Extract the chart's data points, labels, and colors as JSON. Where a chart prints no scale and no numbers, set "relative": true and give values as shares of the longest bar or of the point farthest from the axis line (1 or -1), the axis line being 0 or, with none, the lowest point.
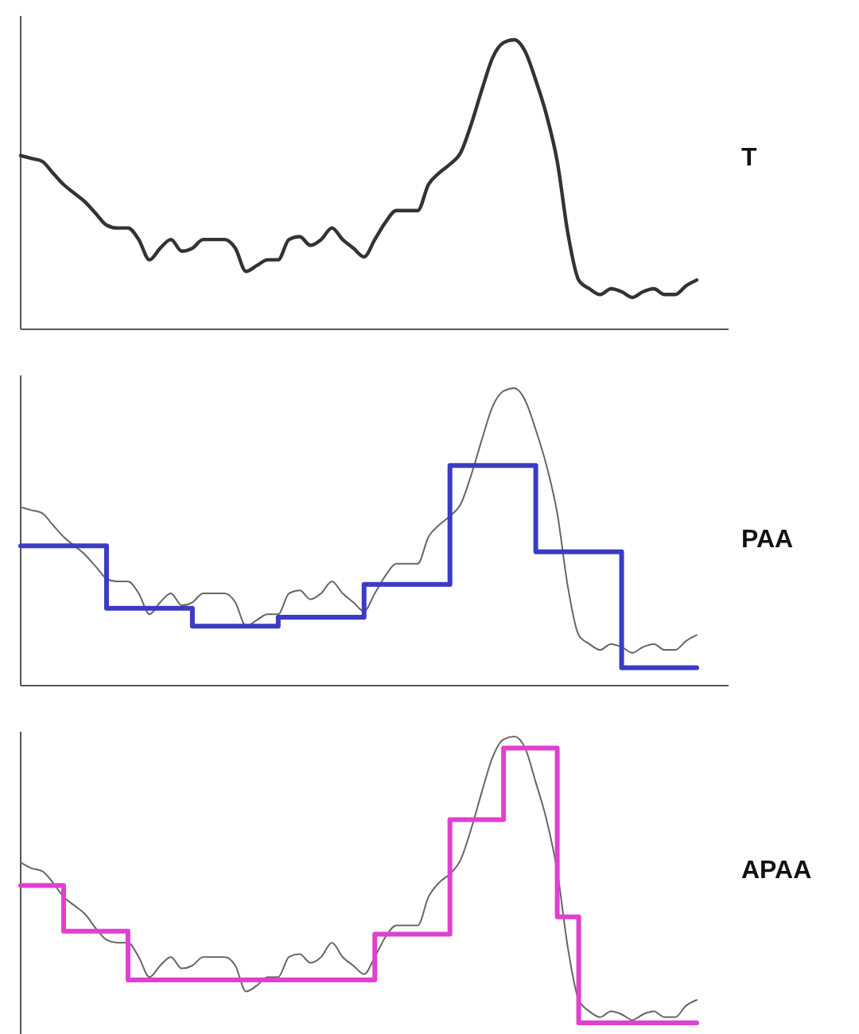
{
  "chart_data": [
    {
      "type": "line",
      "relative": true,
      "categories": [
        null,
        null,
        null,
        null,
        null,
        null,
        null,
        null,
        null,
        null,
        null,
        null,
        null,
        null,
        null,
        null,
        null,
        null,
        null,
        null,
        null,
        null,
        null,
        null,
        null,
        null,
        null,
        null,
        null,
        null,
        null,
        null,
        null,
        null,
        null,
        null,
        null,
        null,
        null,
        null,
        null,
        null,
        null,
        null,
        null,
        null,
        null,
        null,
        null,
        null,
        null,
        null,
        null,
        null,
        null,
        null,
        null,
        null,
        null,
        null,
        null,
        null,
        null,
        null
      ],
      "series": [
        {
          "name": "T",
          "color": "#333333",
          "values": [
            0.6,
            0.59,
            0.58,
            0.54,
            0.5,
            0.47,
            0.44,
            0.4,
            0.36,
            0.35,
            0.35,
            0.31,
            0.24,
            0.28,
            0.31,
            0.27,
            0.28,
            0.31,
            0.31,
            0.31,
            0.28,
            0.2,
            0.22,
            0.24,
            0.24,
            0.31,
            0.32,
            0.29,
            0.31,
            0.35,
            0.31,
            0.28,
            0.25,
            0.31,
            0.37,
            0.41,
            0.41,
            0.41,
            0.5,
            0.54,
            0.57,
            0.61,
            0.71,
            0.83,
            0.94,
            0.99,
            1.0,
            0.96,
            0.86,
            0.74,
            0.58,
            0.33,
            0.17,
            0.14,
            0.12,
            0.14,
            0.13,
            0.11,
            0.13,
            0.14,
            0.12,
            0.12,
            0.15,
            0.17
          ]
        }
      ]
    },
    {
      "type": "line",
      "relative": true,
      "categories": [
        null,
        null,
        null,
        null,
        null,
        null,
        null,
        null,
        null,
        null,
        null,
        null,
        null,
        null,
        null,
        null,
        null,
        null,
        null,
        null,
        null,
        null,
        null,
        null,
        null,
        null,
        null,
        null,
        null,
        null,
        null,
        null,
        null,
        null,
        null,
        null,
        null,
        null,
        null,
        null,
        null,
        null,
        null,
        null,
        null,
        null,
        null,
        null,
        null,
        null,
        null,
        null,
        null,
        null,
        null,
        null,
        null,
        null,
        null,
        null,
        null,
        null,
        null,
        null
      ],
      "series": [
        {
          "color": "#666666",
          "values": [
            0.6,
            0.59,
            0.58,
            0.54,
            0.5,
            0.47,
            0.44,
            0.4,
            0.36,
            0.35,
            0.35,
            0.31,
            0.24,
            0.28,
            0.31,
            0.27,
            0.28,
            0.31,
            0.31,
            0.31,
            0.28,
            0.2,
            0.22,
            0.24,
            0.24,
            0.31,
            0.32,
            0.29,
            0.31,
            0.35,
            0.31,
            0.28,
            0.25,
            0.31,
            0.37,
            0.41,
            0.41,
            0.41,
            0.5,
            0.54,
            0.57,
            0.61,
            0.71,
            0.83,
            0.94,
            0.99,
            1.0,
            0.96,
            0.86,
            0.74,
            0.58,
            0.33,
            0.17,
            0.14,
            0.12,
            0.14,
            0.13,
            0.11,
            0.13,
            0.14,
            0.12,
            0.12,
            0.15,
            0.17
          ]
        },
        {
          "type": "step",
          "name": "PAA",
          "color": "#3b3bc4",
          "values": [
            0.47,
            0.47,
            0.47,
            0.47,
            0.47,
            0.47,
            0.47,
            0.47,
            0.26,
            0.26,
            0.26,
            0.26,
            0.26,
            0.26,
            0.26,
            0.26,
            0.2,
            0.2,
            0.2,
            0.2,
            0.2,
            0.2,
            0.2,
            0.2,
            0.23,
            0.23,
            0.23,
            0.23,
            0.23,
            0.23,
            0.23,
            0.23,
            0.34,
            0.34,
            0.34,
            0.34,
            0.34,
            0.34,
            0.34,
            0.34,
            0.74,
            0.74,
            0.74,
            0.74,
            0.74,
            0.74,
            0.74,
            0.74,
            0.45,
            0.45,
            0.45,
            0.45,
            0.45,
            0.45,
            0.45,
            0.45,
            0.06,
            0.06,
            0.06,
            0.06,
            0.06,
            0.06,
            0.06,
            0.06
          ]
        }
      ]
    },
    {
      "type": "line",
      "relative": true,
      "categories": [
        null,
        null,
        null,
        null,
        null,
        null,
        null,
        null,
        null,
        null,
        null,
        null,
        null,
        null,
        null,
        null,
        null,
        null,
        null,
        null,
        null,
        null,
        null,
        null,
        null,
        null,
        null,
        null,
        null,
        null,
        null,
        null,
        null,
        null,
        null,
        null,
        null,
        null,
        null,
        null,
        null,
        null,
        null,
        null,
        null,
        null,
        null,
        null,
        null,
        null,
        null,
        null,
        null,
        null,
        null,
        null,
        null,
        null,
        null,
        null,
        null,
        null,
        null,
        null
      ],
      "series": [
        {
          "color": "#666666",
          "values": [
            0.56,
            0.54,
            0.53,
            0.49,
            0.44,
            0.41,
            0.38,
            0.33,
            0.29,
            0.28,
            0.28,
            0.23,
            0.16,
            0.2,
            0.23,
            0.19,
            0.2,
            0.23,
            0.23,
            0.23,
            0.2,
            0.11,
            0.13,
            0.16,
            0.16,
            0.23,
            0.24,
            0.21,
            0.23,
            0.28,
            0.23,
            0.2,
            0.17,
            0.23,
            0.3,
            0.34,
            0.34,
            0.34,
            0.44,
            0.49,
            0.52,
            0.57,
            0.68,
            0.81,
            0.93,
            0.99,
            1.0,
            0.96,
            0.84,
            0.71,
            0.53,
            0.26,
            0.08,
            0.04,
            0.02,
            0.04,
            0.03,
            0.01,
            0.03,
            0.04,
            0.02,
            0.02,
            0.06,
            0.08
          ]
        },
        {
          "type": "step",
          "name": "APAA",
          "color": "#e040d0",
          "values": [
            0.48,
            0.48,
            0.48,
            0.48,
            0.32,
            0.32,
            0.32,
            0.32,
            0.32,
            0.32,
            0.15,
            0.15,
            0.15,
            0.15,
            0.15,
            0.15,
            0.15,
            0.15,
            0.15,
            0.15,
            0.15,
            0.15,
            0.15,
            0.15,
            0.15,
            0.15,
            0.15,
            0.15,
            0.15,
            0.15,
            0.15,
            0.15,
            0.15,
            0.31,
            0.31,
            0.31,
            0.31,
            0.31,
            0.31,
            0.31,
            0.71,
            0.71,
            0.71,
            0.71,
            0.71,
            0.96,
            0.96,
            0.96,
            0.96,
            0.96,
            0.37,
            0.37,
            0,
            0,
            0,
            0,
            0,
            0,
            0,
            0,
            0,
            0,
            0,
            0
          ]
        }
      ]
    }
  ]
}
